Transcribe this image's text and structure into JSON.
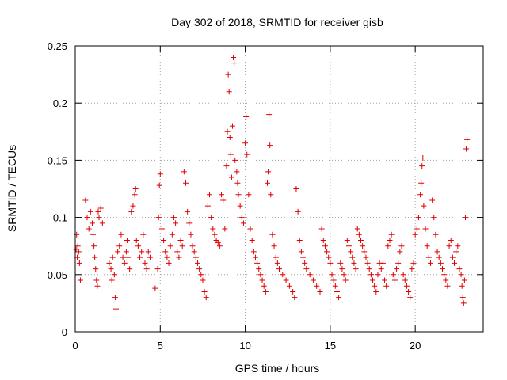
{
  "chart_data": {
    "type": "scatter",
    "title": "Day 302 of 2018, SRMTID for receiver gisb",
    "xlabel": "GPS time / hours",
    "ylabel": "SRMTID / TECUs",
    "xlim": [
      0,
      24
    ],
    "ylim": [
      0,
      0.25
    ],
    "xticks": [
      0,
      5,
      10,
      15,
      20
    ],
    "xtick_labels": [
      "0",
      "5",
      "10",
      "15",
      "20"
    ],
    "yticks": [
      0,
      0.05,
      0.1,
      0.15,
      0.2,
      0.25
    ],
    "ytick_labels": [
      "0",
      "0.05",
      "0.1",
      "0.15",
      "0.2",
      "0.25"
    ],
    "grid": true,
    "marker": "plus",
    "color": "#e00000",
    "series": [
      {
        "name": "SRMTID",
        "points": [
          [
            0.05,
            0.072
          ],
          [
            0.08,
            0.085
          ],
          [
            0.12,
            0.065
          ],
          [
            0.15,
            0.075
          ],
          [
            0.2,
            0.07
          ],
          [
            0.25,
            0.06
          ],
          [
            0.3,
            0.045
          ],
          [
            0.6,
            0.115
          ],
          [
            0.7,
            0.1
          ],
          [
            0.8,
            0.09
          ],
          [
            0.9,
            0.105
          ],
          [
            1.0,
            0.095
          ],
          [
            1.05,
            0.085
          ],
          [
            1.1,
            0.075
          ],
          [
            1.15,
            0.065
          ],
          [
            1.2,
            0.055
          ],
          [
            1.25,
            0.045
          ],
          [
            1.3,
            0.04
          ],
          [
            1.35,
            0.105
          ],
          [
            1.4,
            0.1
          ],
          [
            1.5,
            0.108
          ],
          [
            1.6,
            0.095
          ],
          [
            2.0,
            0.06
          ],
          [
            2.1,
            0.055
          ],
          [
            2.15,
            0.045
          ],
          [
            2.2,
            0.065
          ],
          [
            2.3,
            0.05
          ],
          [
            2.35,
            0.03
          ],
          [
            2.4,
            0.02
          ],
          [
            2.5,
            0.07
          ],
          [
            2.6,
            0.075
          ],
          [
            2.7,
            0.085
          ],
          [
            2.8,
            0.065
          ],
          [
            2.9,
            0.06
          ],
          [
            3.0,
            0.07
          ],
          [
            3.05,
            0.08
          ],
          [
            3.1,
            0.065
          ],
          [
            3.2,
            0.055
          ],
          [
            3.3,
            0.105
          ],
          [
            3.4,
            0.11
          ],
          [
            3.5,
            0.12
          ],
          [
            3.55,
            0.125
          ],
          [
            3.6,
            0.08
          ],
          [
            3.7,
            0.075
          ],
          [
            3.8,
            0.065
          ],
          [
            3.9,
            0.07
          ],
          [
            4.0,
            0.085
          ],
          [
            4.1,
            0.06
          ],
          [
            4.2,
            0.055
          ],
          [
            4.3,
            0.07
          ],
          [
            4.4,
            0.065
          ],
          [
            4.7,
            0.038
          ],
          [
            4.85,
            0.055
          ],
          [
            4.9,
            0.1
          ],
          [
            4.95,
            0.128
          ],
          [
            5.0,
            0.138
          ],
          [
            5.1,
            0.09
          ],
          [
            5.2,
            0.08
          ],
          [
            5.3,
            0.07
          ],
          [
            5.4,
            0.065
          ],
          [
            5.5,
            0.06
          ],
          [
            5.6,
            0.075
          ],
          [
            5.7,
            0.085
          ],
          [
            5.8,
            0.1
          ],
          [
            5.9,
            0.095
          ],
          [
            6.0,
            0.07
          ],
          [
            6.1,
            0.065
          ],
          [
            6.2,
            0.08
          ],
          [
            6.3,
            0.075
          ],
          [
            6.4,
            0.14
          ],
          [
            6.5,
            0.13
          ],
          [
            6.6,
            0.105
          ],
          [
            6.7,
            0.095
          ],
          [
            6.8,
            0.085
          ],
          [
            6.9,
            0.075
          ],
          [
            7.0,
            0.07
          ],
          [
            7.1,
            0.065
          ],
          [
            7.2,
            0.06
          ],
          [
            7.3,
            0.055
          ],
          [
            7.4,
            0.05
          ],
          [
            7.5,
            0.045
          ],
          [
            7.6,
            0.035
          ],
          [
            7.7,
            0.03
          ],
          [
            7.8,
            0.11
          ],
          [
            7.9,
            0.12
          ],
          [
            8.0,
            0.1
          ],
          [
            8.1,
            0.09
          ],
          [
            8.2,
            0.085
          ],
          [
            8.3,
            0.08
          ],
          [
            8.4,
            0.078
          ],
          [
            8.5,
            0.075
          ],
          [
            8.6,
            0.12
          ],
          [
            8.7,
            0.115
          ],
          [
            8.8,
            0.09
          ],
          [
            8.9,
            0.145
          ],
          [
            8.95,
            0.175
          ],
          [
            9.0,
            0.225
          ],
          [
            9.05,
            0.21
          ],
          [
            9.1,
            0.17
          ],
          [
            9.15,
            0.155
          ],
          [
            9.2,
            0.135
          ],
          [
            9.25,
            0.18
          ],
          [
            9.3,
            0.24
          ],
          [
            9.35,
            0.235
          ],
          [
            9.4,
            0.15
          ],
          [
            9.5,
            0.14
          ],
          [
            9.55,
            0.13
          ],
          [
            9.6,
            0.12
          ],
          [
            9.7,
            0.11
          ],
          [
            9.8,
            0.1
          ],
          [
            9.9,
            0.095
          ],
          [
            10.0,
            0.165
          ],
          [
            10.05,
            0.188
          ],
          [
            10.1,
            0.155
          ],
          [
            10.2,
            0.12
          ],
          [
            10.3,
            0.09
          ],
          [
            10.4,
            0.08
          ],
          [
            10.5,
            0.07
          ],
          [
            10.6,
            0.065
          ],
          [
            10.7,
            0.06
          ],
          [
            10.8,
            0.055
          ],
          [
            10.9,
            0.05
          ],
          [
            11.0,
            0.045
          ],
          [
            11.1,
            0.04
          ],
          [
            11.2,
            0.035
          ],
          [
            11.3,
            0.13
          ],
          [
            11.35,
            0.14
          ],
          [
            11.4,
            0.19
          ],
          [
            11.45,
            0.163
          ],
          [
            11.5,
            0.12
          ],
          [
            11.6,
            0.085
          ],
          [
            11.7,
            0.075
          ],
          [
            11.8,
            0.065
          ],
          [
            11.9,
            0.06
          ],
          [
            12.0,
            0.055
          ],
          [
            12.2,
            0.05
          ],
          [
            12.4,
            0.045
          ],
          [
            12.6,
            0.04
          ],
          [
            12.8,
            0.035
          ],
          [
            12.9,
            0.03
          ],
          [
            13.0,
            0.125
          ],
          [
            13.1,
            0.105
          ],
          [
            13.2,
            0.08
          ],
          [
            13.3,
            0.07
          ],
          [
            13.4,
            0.065
          ],
          [
            13.5,
            0.06
          ],
          [
            13.6,
            0.055
          ],
          [
            13.8,
            0.05
          ],
          [
            14.0,
            0.045
          ],
          [
            14.2,
            0.04
          ],
          [
            14.4,
            0.035
          ],
          [
            14.5,
            0.09
          ],
          [
            14.6,
            0.08
          ],
          [
            14.7,
            0.075
          ],
          [
            14.8,
            0.07
          ],
          [
            14.9,
            0.065
          ],
          [
            15.0,
            0.06
          ],
          [
            15.1,
            0.05
          ],
          [
            15.2,
            0.045
          ],
          [
            15.3,
            0.04
          ],
          [
            15.4,
            0.035
          ],
          [
            15.5,
            0.03
          ],
          [
            15.6,
            0.06
          ],
          [
            15.7,
            0.055
          ],
          [
            15.8,
            0.05
          ],
          [
            15.9,
            0.045
          ],
          [
            16.0,
            0.08
          ],
          [
            16.1,
            0.075
          ],
          [
            16.2,
            0.07
          ],
          [
            16.3,
            0.065
          ],
          [
            16.4,
            0.06
          ],
          [
            16.5,
            0.055
          ],
          [
            16.6,
            0.09
          ],
          [
            16.7,
            0.085
          ],
          [
            16.8,
            0.08
          ],
          [
            16.9,
            0.075
          ],
          [
            17.0,
            0.07
          ],
          [
            17.1,
            0.065
          ],
          [
            17.2,
            0.06
          ],
          [
            17.3,
            0.055
          ],
          [
            17.4,
            0.05
          ],
          [
            17.5,
            0.045
          ],
          [
            17.6,
            0.04
          ],
          [
            17.7,
            0.035
          ],
          [
            17.8,
            0.05
          ],
          [
            17.9,
            0.06
          ],
          [
            18.0,
            0.055
          ],
          [
            18.1,
            0.06
          ],
          [
            18.2,
            0.045
          ],
          [
            18.3,
            0.04
          ],
          [
            18.4,
            0.075
          ],
          [
            18.5,
            0.08
          ],
          [
            18.6,
            0.085
          ],
          [
            18.7,
            0.05
          ],
          [
            18.8,
            0.045
          ],
          [
            18.9,
            0.055
          ],
          [
            19.0,
            0.06
          ],
          [
            19.1,
            0.07
          ],
          [
            19.2,
            0.075
          ],
          [
            19.3,
            0.05
          ],
          [
            19.4,
            0.045
          ],
          [
            19.5,
            0.04
          ],
          [
            19.6,
            0.035
          ],
          [
            19.7,
            0.03
          ],
          [
            19.8,
            0.055
          ],
          [
            19.9,
            0.06
          ],
          [
            20.0,
            0.085
          ],
          [
            20.1,
            0.09
          ],
          [
            20.2,
            0.1
          ],
          [
            20.3,
            0.12
          ],
          [
            20.35,
            0.13
          ],
          [
            20.4,
            0.145
          ],
          [
            20.45,
            0.152
          ],
          [
            20.5,
            0.11
          ],
          [
            20.6,
            0.09
          ],
          [
            20.7,
            0.075
          ],
          [
            20.8,
            0.065
          ],
          [
            20.9,
            0.06
          ],
          [
            21.0,
            0.115
          ],
          [
            21.1,
            0.1
          ],
          [
            21.2,
            0.085
          ],
          [
            21.3,
            0.07
          ],
          [
            21.4,
            0.065
          ],
          [
            21.5,
            0.06
          ],
          [
            21.6,
            0.055
          ],
          [
            21.7,
            0.05
          ],
          [
            21.8,
            0.045
          ],
          [
            21.9,
            0.04
          ],
          [
            22.0,
            0.075
          ],
          [
            22.1,
            0.08
          ],
          [
            22.2,
            0.065
          ],
          [
            22.3,
            0.06
          ],
          [
            22.4,
            0.07
          ],
          [
            22.5,
            0.075
          ],
          [
            22.6,
            0.055
          ],
          [
            22.7,
            0.05
          ],
          [
            22.75,
            0.04
          ],
          [
            22.8,
            0.03
          ],
          [
            22.85,
            0.025
          ],
          [
            22.9,
            0.045
          ],
          [
            22.95,
            0.1
          ],
          [
            23.0,
            0.16
          ],
          [
            23.05,
            0.168
          ]
        ]
      }
    ]
  }
}
